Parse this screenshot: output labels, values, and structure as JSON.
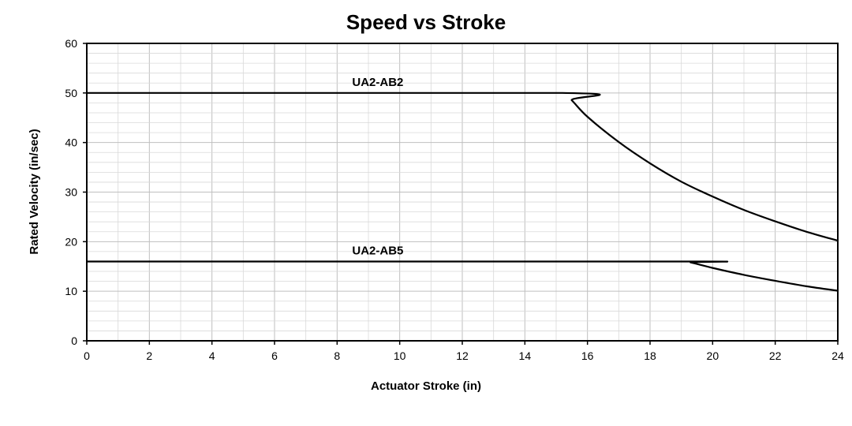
{
  "chart_data": {
    "type": "line",
    "title": "Speed vs Stroke",
    "xlabel": "Actuator Stroke (in)",
    "ylabel": "Rated Velocity (in/sec)",
    "xlim": [
      0,
      24
    ],
    "ylim": [
      0,
      60
    ],
    "x_ticks": [
      "0",
      "2",
      "4",
      "6",
      "8",
      "10",
      "12",
      "14",
      "16",
      "18",
      "20",
      "22",
      "24"
    ],
    "y_ticks": [
      "0",
      "10",
      "20",
      "30",
      "40",
      "50",
      "60"
    ],
    "grid": true,
    "series": [
      {
        "name": "UA2-AB2",
        "x": [
          0,
          15.2,
          15.5,
          16,
          17,
          18,
          19,
          20,
          21,
          22,
          23,
          24
        ],
        "y": [
          50,
          50,
          48.5,
          45.2,
          40.1,
          35.8,
          32.1,
          29.1,
          26.4,
          24.1,
          22.0,
          20.2
        ]
      },
      {
        "name": "UA2-AB5",
        "x": [
          0,
          19.0,
          19.3,
          20,
          21,
          22,
          23,
          24
        ],
        "y": [
          16,
          16,
          15.8,
          14.7,
          13.3,
          12.1,
          11.0,
          10.1
        ]
      }
    ]
  }
}
